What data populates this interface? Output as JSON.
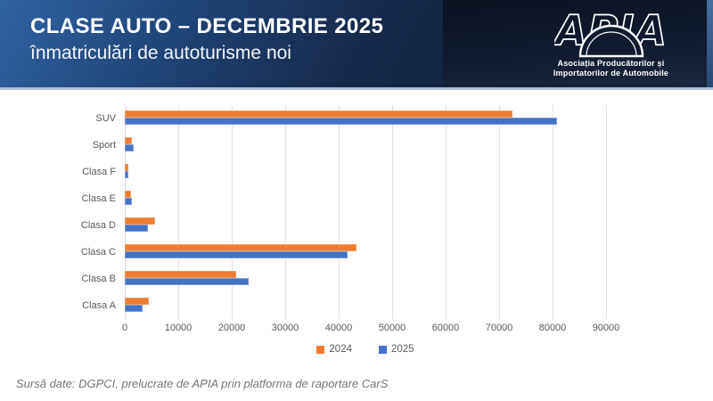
{
  "header": {
    "title_line1": "CLASE AUTO – DECEMBRIE 2025",
    "title_line2": "înmatriculări de autoturisme noi",
    "logo": {
      "acronym": "APIA",
      "subtitle_line1": "Asociația Producătorilor și",
      "subtitle_line2": "Importatorilor de Automobile"
    }
  },
  "chart_data": {
    "type": "bar",
    "orientation": "horizontal",
    "title": "CLASE AUTO – DECEMBRIE 2025 înmatriculări de autoturisme noi",
    "categories": [
      "SUV",
      "Sport",
      "Clasa F",
      "Clasa E",
      "Clasa D",
      "Clasa C",
      "Clasa B",
      "Clasa A"
    ],
    "series": [
      {
        "name": "2024",
        "color": "#ED7D31",
        "border_color": "#F09C5E",
        "values": [
          72500,
          1400,
          600,
          1100,
          5600,
          43300,
          20800,
          4500
        ]
      },
      {
        "name": "2025",
        "color": "#4472C4",
        "border_color": "#7E9BD7",
        "values": [
          80800,
          1600,
          700,
          1400,
          4400,
          41700,
          23200,
          3400
        ]
      }
    ],
    "xlim": [
      0,
      90000
    ],
    "xticks": [
      0,
      10000,
      20000,
      30000,
      40000,
      50000,
      60000,
      70000,
      80000,
      90000
    ],
    "grid": "vertical",
    "legend_position": "bottom"
  },
  "footer": {
    "source_note": "Sursă date: DGPCI, prelucrate de APIA prin platforma de raportare CarS"
  },
  "colors": {
    "header_gradient_start": "#2f62a2",
    "header_gradient_end": "#122442",
    "header_right_panel": "#0d1626",
    "header_separator": "#aebfd6",
    "accent_2024": "#ED7D31",
    "accent_2025": "#4472C4",
    "gridline": "#e2e2e2",
    "axis_text": "#595959"
  }
}
